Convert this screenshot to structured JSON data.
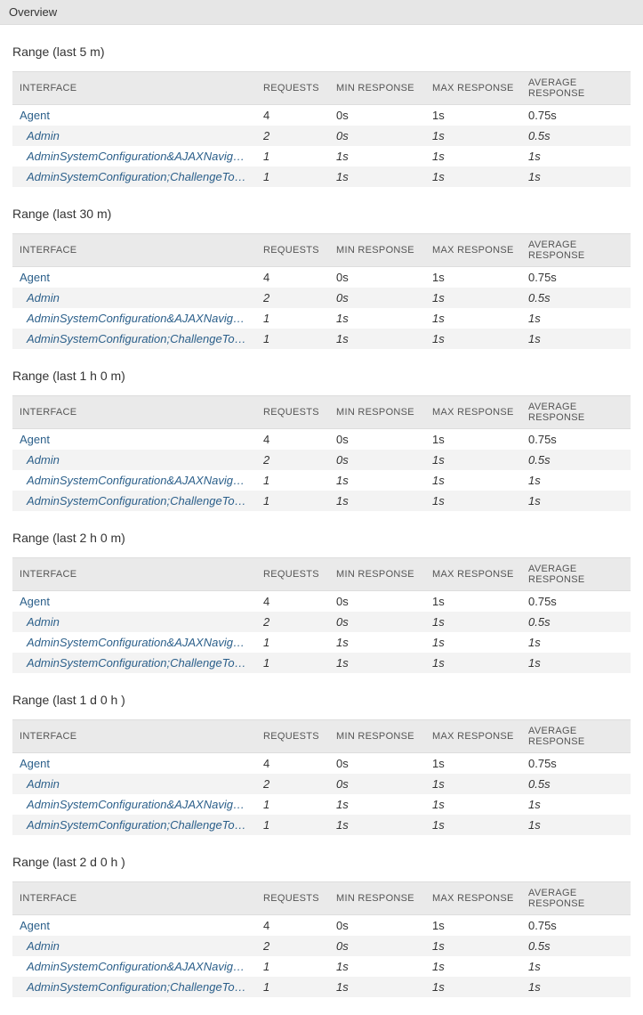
{
  "header": {
    "title": "Overview"
  },
  "columns": {
    "interface": "INTERFACE",
    "requests": "REQUESTS",
    "min": "MIN RESPONSE",
    "max": "MAX RESPONSE",
    "avg": "AVERAGE RESPONSE"
  },
  "rows": [
    {
      "interface": "Agent",
      "requests": "4",
      "min": "0s",
      "max": "1s",
      "avg": "0.75s"
    },
    {
      "interface": "Admin",
      "requests": "2",
      "min": "0s",
      "max": "1s",
      "avg": "0.5s"
    },
    {
      "interface": "AdminSystemConfiguration&AJAXNavigati...",
      "requests": "1",
      "min": "1s",
      "max": "1s",
      "avg": "1s"
    },
    {
      "interface": "AdminSystemConfiguration;ChallengeTok...",
      "requests": "1",
      "min": "1s",
      "max": "1s",
      "avg": "1s"
    }
  ],
  "ranges": [
    {
      "title": "Range (last 5 m)"
    },
    {
      "title": "Range (last 30 m)"
    },
    {
      "title": "Range (last 1 h 0 m)"
    },
    {
      "title": "Range (last 2 h 0 m)"
    },
    {
      "title": "Range (last 1 d 0 h )"
    },
    {
      "title": "Range (last 2 d 0 h )"
    }
  ],
  "colors": {
    "header_bg": "#e6e6e6",
    "th_bg": "#eaeaea",
    "row_odd_bg": "#f3f3f3",
    "link": "#2b5f8a",
    "border": "#ddd"
  }
}
